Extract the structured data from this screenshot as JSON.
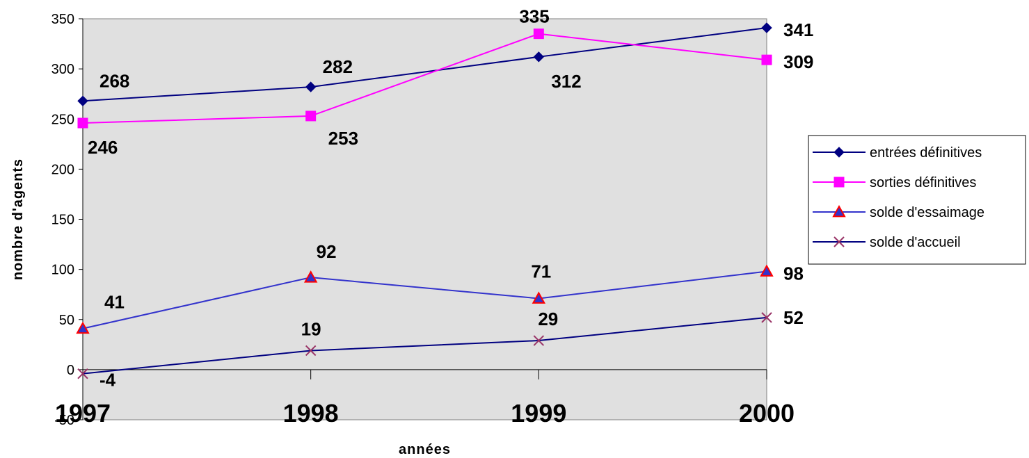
{
  "chart_data": {
    "type": "line",
    "title": "",
    "xlabel": "années",
    "ylabel": "nombre d'agents",
    "categories": [
      "1997",
      "1998",
      "1999",
      "2000"
    ],
    "ylim": [
      -50,
      350
    ],
    "yticks": [
      "-50",
      "0",
      "50",
      "100",
      "150",
      "200",
      "250",
      "300",
      "350"
    ],
    "grid": false,
    "legend_position": "right",
    "series": [
      {
        "name": "entrées définitives",
        "values": [
          268,
          282,
          312,
          341
        ],
        "labels": [
          "268",
          "282",
          "312",
          "341"
        ],
        "color": "#000080",
        "marker": "diamond"
      },
      {
        "name": "sorties définitives",
        "values": [
          246,
          253,
          335,
          309
        ],
        "labels": [
          "246",
          "253",
          "335",
          "309"
        ],
        "color": "#ff00ff",
        "marker": "square"
      },
      {
        "name": "solde d'essaimage",
        "values": [
          41,
          92,
          71,
          98
        ],
        "labels": [
          "41",
          "92",
          "71",
          "98"
        ],
        "color": "#3333cc",
        "marker": "triangle"
      },
      {
        "name": "solde d'accueil",
        "values": [
          -4,
          19,
          29,
          52
        ],
        "labels": [
          "-4",
          "19",
          "29",
          "52"
        ],
        "color": "#000080",
        "marker": "x"
      }
    ]
  }
}
